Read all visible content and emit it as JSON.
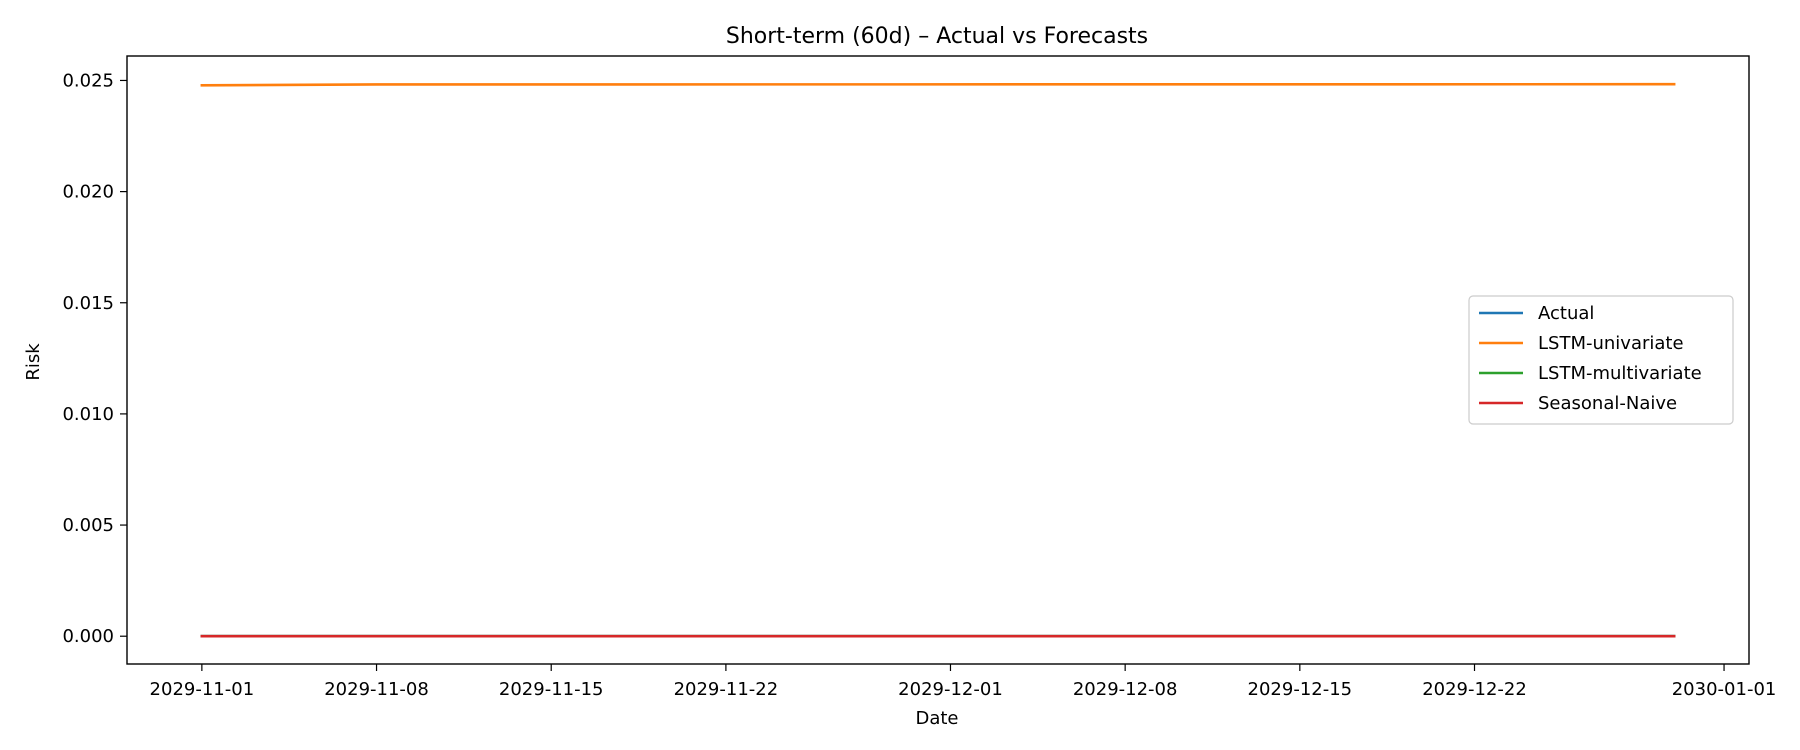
{
  "chart_data": {
    "type": "line",
    "title": "Short-term (60d) – Actual vs Forecasts",
    "xlabel": "Date",
    "ylabel": "Risk",
    "xlim": [
      "2029-10-29",
      "2030-01-02"
    ],
    "ylim": [
      -0.00125,
      0.0261
    ],
    "x_ticks": [
      "2029-11-01",
      "2029-11-08",
      "2029-11-15",
      "2029-11-22",
      "2029-12-01",
      "2029-12-08",
      "2029-12-15",
      "2029-12-22",
      "2030-01-01"
    ],
    "y_ticks": [
      0.0,
      0.005,
      0.01,
      0.015,
      0.02,
      0.025
    ],
    "y_tick_labels": [
      "0.000",
      "0.005",
      "0.010",
      "0.015",
      "0.020",
      "0.025"
    ],
    "grid": false,
    "legend_position": "center-right",
    "x_range": [
      "2029-11-01",
      "2029-12-30"
    ],
    "series": [
      {
        "name": "Actual",
        "color": "#1f77b4",
        "x": [
          "2029-11-01",
          "2029-12-30"
        ],
        "values": [
          0.0,
          0.0
        ]
      },
      {
        "name": "LSTM-univariate",
        "color": "#ff7f0e",
        "x": [
          "2029-11-01",
          "2029-11-08",
          "2029-12-30"
        ],
        "values": [
          0.02478,
          0.02482,
          0.02483
        ]
      },
      {
        "name": "LSTM-multivariate",
        "color": "#2ca02c",
        "x": [
          "2029-11-01",
          "2029-12-30"
        ],
        "values": [
          0.0,
          0.0
        ]
      },
      {
        "name": "Seasonal-Naive",
        "color": "#d62728",
        "x": [
          "2029-11-01",
          "2029-12-30"
        ],
        "values": [
          0.0,
          0.0
        ]
      }
    ]
  }
}
